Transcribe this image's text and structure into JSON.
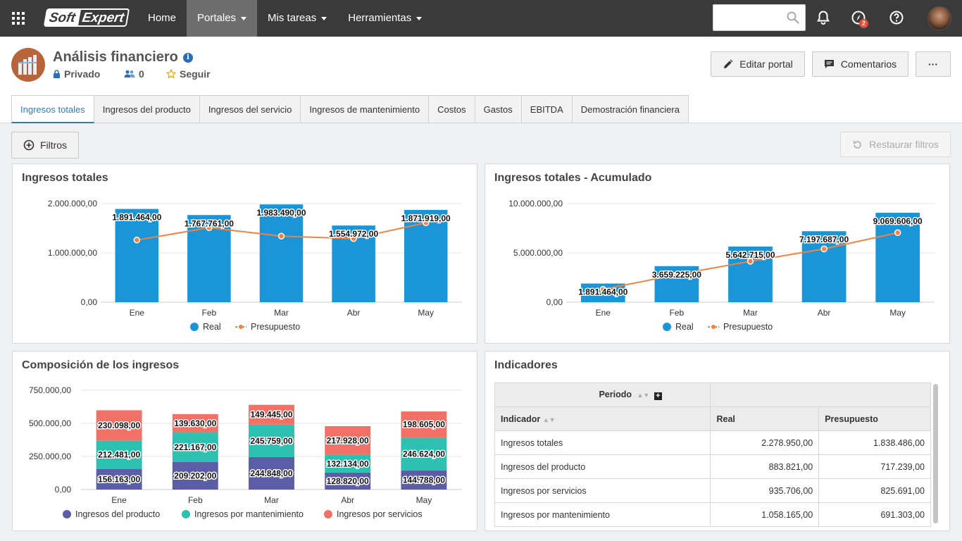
{
  "topbar": {
    "logo": {
      "part1": "Soft",
      "part2": "Expert"
    },
    "nav": [
      {
        "label": "Home",
        "dropdown": false,
        "active": false
      },
      {
        "label": "Portales",
        "dropdown": true,
        "active": true
      },
      {
        "label": "Mis tareas",
        "dropdown": true,
        "active": false
      },
      {
        "label": "Herramientas",
        "dropdown": true,
        "active": false
      }
    ],
    "search": {
      "value": "",
      "placeholder": ""
    },
    "notifications_badge": "2"
  },
  "portal": {
    "title": "Análisis financiero",
    "privacy": "Privado",
    "members": "0",
    "follow": "Seguir",
    "buttons": {
      "edit": "Editar portal",
      "comments": "Comentarios",
      "more": "···"
    }
  },
  "tabs": [
    "Ingresos totales",
    "Ingresos del producto",
    "Ingresos del servicio",
    "Ingresos de mantenimiento",
    "Costos",
    "Gastos",
    "EBITDA",
    "Demostración financiera"
  ],
  "filters": {
    "label": "Filtros",
    "restore": "Restaurar filtros"
  },
  "colors": {
    "real": "#1a96d8",
    "budget": "#f5813f",
    "product": "#5b5ea6",
    "maintenance": "#2cc1b0",
    "services": "#f17167"
  },
  "chart_data": [
    {
      "type": "bar",
      "title": "Ingresos totales",
      "categories": [
        "Ene",
        "Feb",
        "Mar",
        "Abr",
        "May"
      ],
      "series": [
        {
          "name": "Real",
          "type": "bar",
          "values": [
            1891464,
            1767761,
            1983490,
            1554972,
            1871919
          ]
        },
        {
          "name": "Presupuesto",
          "type": "line",
          "values": [
            1260000,
            1510000,
            1340000,
            1290000,
            1610000
          ]
        }
      ],
      "value_labels": [
        "1.891.464,00",
        "1.767.761,00",
        "1.983.490,00",
        "1.554.972,00",
        "1.871.919,00"
      ],
      "yticks": [
        "0,00",
        "1.000.000,00",
        "2.000.000,00"
      ],
      "ylim": [
        0,
        2000000
      ]
    },
    {
      "type": "bar",
      "title": "Ingresos totales - Acumulado",
      "categories": [
        "Ene",
        "Feb",
        "Mar",
        "Abr",
        "May"
      ],
      "series": [
        {
          "name": "Real",
          "type": "bar",
          "values": [
            1891464,
            3659225,
            5642715,
            7197687,
            9069606
          ]
        },
        {
          "name": "Presupuesto",
          "type": "line",
          "values": [
            1300000,
            2800000,
            4150000,
            5400000,
            7050000
          ]
        }
      ],
      "value_labels": [
        "1.891.464,00",
        "3.659.225,00",
        "5.642.715,00",
        "7.197.687,00",
        "9.069.606,00"
      ],
      "yticks": [
        "0,00",
        "5.000.000,00",
        "10.000.000,00"
      ],
      "ylim": [
        0,
        10000000
      ]
    },
    {
      "type": "bar",
      "stacked": true,
      "title": "Composición de los ingresos",
      "categories": [
        "Ene",
        "Feb",
        "Mar",
        "Abr",
        "May"
      ],
      "series": [
        {
          "name": "Ingresos del producto",
          "values": [
            156163,
            209202,
            244848,
            128820,
            144788
          ],
          "labels": [
            "156.163,00",
            "209.202,00",
            "244.848,00",
            "128.820,00",
            "144.788,00"
          ]
        },
        {
          "name": "Ingresos por mantenimiento",
          "values": [
            212481,
            221167,
            245759,
            132134,
            246624
          ],
          "labels": [
            "212.481,00",
            "221.167,00",
            "245.759,00",
            "132.134,00",
            "246.624,00"
          ]
        },
        {
          "name": "Ingresos por servicios",
          "values": [
            230098,
            139630,
            149445,
            217928,
            198605
          ],
          "labels": [
            "230.098,00",
            "139.630,00",
            "149.445,00",
            "217.928,00",
            "198.605,00"
          ]
        }
      ],
      "yticks": [
        "0,00",
        "250.000,00",
        "500.000,00",
        "750.000,00"
      ],
      "ylim": [
        0,
        750000
      ]
    }
  ],
  "indicators": {
    "title": "Indicadores",
    "period_label": "Periodo",
    "headers": {
      "indicator": "Indicador",
      "real": "Real",
      "budget": "Presupuesto"
    },
    "rows": [
      {
        "name": "Ingresos totales",
        "real": "2.278.950,00",
        "budget": "1.838.486,00"
      },
      {
        "name": "Ingresos del producto",
        "real": "883.821,00",
        "budget": "717.239,00"
      },
      {
        "name": "Ingresos por servicios",
        "real": "935.706,00",
        "budget": "825.691,00"
      },
      {
        "name": "Ingresos por mantenimiento",
        "real": "1.058.165,00",
        "budget": "691.303,00"
      }
    ]
  }
}
